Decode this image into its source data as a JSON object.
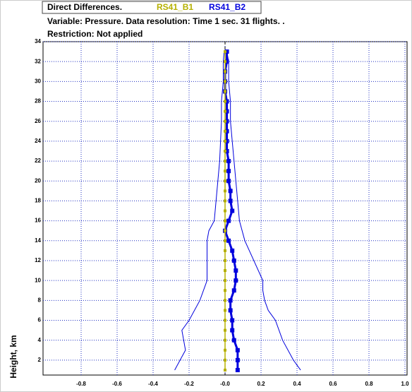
{
  "chart_data": {
    "type": "line",
    "legend_title": "Direct Differences.",
    "subtitle": "Variable: Pressure. Data resolution: Time 1 sec. 31 flights.  .",
    "note": "Restriction: Not applied",
    "y_label": "Height, km",
    "xlim": [
      -1.0,
      1.0
    ],
    "ylim": [
      0.5,
      34
    ],
    "xticks": [
      -0.8,
      -0.6,
      -0.4,
      -0.2,
      {
        "value": 0,
        "label": "-0.0"
      },
      0.2,
      0.4,
      0.6,
      0.8,
      {
        "value": 1.0,
        "label": "1.0"
      }
    ],
    "yticks": [
      2,
      4,
      6,
      8,
      10,
      12,
      14,
      16,
      18,
      20,
      22,
      24,
      26,
      28,
      30,
      32,
      34
    ],
    "grid": true,
    "series": [
      {
        "name": "RS41_B1",
        "color": "#b5b000",
        "markers": true,
        "y": [
          1,
          2,
          3,
          4,
          5,
          6,
          7,
          8,
          9,
          10,
          11,
          12,
          13,
          14,
          15,
          16,
          17,
          18,
          19,
          20,
          21,
          22,
          23,
          24,
          25,
          26,
          27,
          28,
          29,
          30,
          31,
          32,
          33
        ],
        "values": [
          0,
          0,
          0,
          0,
          0,
          0,
          0,
          0,
          0,
          0,
          0,
          0,
          0,
          0,
          0,
          0,
          0,
          0,
          0,
          0,
          0,
          0,
          0,
          0,
          0,
          0,
          0,
          0,
          0,
          0,
          0,
          0,
          0
        ]
      },
      {
        "name": "RS41_B2",
        "color": "#0000dd",
        "markers": true,
        "y": [
          1,
          2,
          3,
          4,
          5,
          6,
          7,
          8,
          9,
          10,
          11,
          12,
          13,
          14,
          15,
          16,
          17,
          18,
          19,
          20,
          21,
          22,
          23,
          24,
          25,
          26,
          27,
          28,
          29,
          30,
          31,
          32,
          33
        ],
        "values": [
          0.07,
          0.07,
          0.07,
          0.05,
          0.04,
          0.04,
          0.03,
          0.03,
          0.05,
          0.06,
          0.06,
          0.05,
          0.04,
          0.02,
          0.0,
          0.02,
          0.04,
          0.03,
          0.03,
          0.02,
          0.02,
          0.02,
          0.01,
          0.01,
          0.01,
          0.01,
          0.01,
          0.01,
          0.0,
          0.0,
          0.0,
          0.01,
          0.01
        ]
      },
      {
        "color": "#0000dd",
        "markers": false,
        "y": [
          1,
          2,
          3,
          4,
          5,
          6,
          8,
          10,
          12,
          14,
          15,
          16,
          18,
          20,
          22,
          24,
          26,
          28,
          30,
          32,
          33
        ],
        "values": [
          -0.28,
          -0.25,
          -0.22,
          -0.23,
          -0.24,
          -0.2,
          -0.14,
          -0.1,
          -0.1,
          -0.1,
          -0.09,
          -0.06,
          -0.05,
          -0.04,
          -0.03,
          -0.025,
          -0.02,
          -0.02,
          -0.01,
          -0.01,
          -0.005
        ]
      },
      {
        "color": "#0000dd",
        "markers": false,
        "y": [
          1,
          2,
          4,
          6,
          7,
          8,
          9,
          10,
          12,
          14,
          16,
          18,
          20,
          22,
          24,
          26,
          28,
          30,
          32,
          33
        ],
        "values": [
          0.42,
          0.38,
          0.32,
          0.28,
          0.24,
          0.22,
          0.21,
          0.21,
          0.16,
          0.11,
          0.08,
          0.07,
          0.06,
          0.05,
          0.04,
          0.03,
          0.03,
          0.02,
          0.02,
          0.01
        ]
      }
    ]
  }
}
